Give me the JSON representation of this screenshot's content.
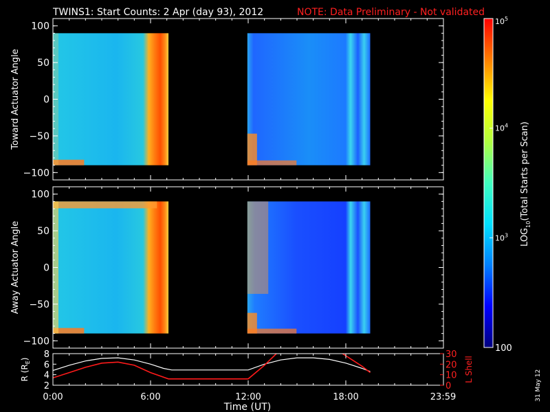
{
  "title": {
    "main": "TWINS1: Start Counts:  2 Apr (day  93), 2012",
    "note": "NOTE: Data Preliminary - Not validated"
  },
  "colorbar": {
    "label_prefix": "LOG",
    "label_sub": "10",
    "label_suffix": "(Total Starts per Scan)",
    "ticks": [
      {
        "value": 100,
        "text": "100"
      },
      {
        "value": 1000,
        "text": "10",
        "sup": "3"
      },
      {
        "value": 10000,
        "text": "10",
        "sup": "4"
      },
      {
        "value": 100000,
        "text": "10",
        "sup": "5"
      }
    ],
    "range": [
      100,
      100000
    ],
    "scale": "log",
    "colormap": [
      "#00007f",
      "#0000ff",
      "#0080ff",
      "#00e0ff",
      "#40ffc0",
      "#b0ff40",
      "#ffff00",
      "#ff8000",
      "#ff0000"
    ]
  },
  "date_stamp": "31 May 12",
  "x_axis": {
    "label": "Time (UT)",
    "range_hours": [
      0,
      24
    ],
    "ticks": [
      {
        "hour": 0,
        "text": "0:00"
      },
      {
        "hour": 6,
        "text": "6:00"
      },
      {
        "hour": 12,
        "text": "12:00"
      },
      {
        "hour": 18,
        "text": "18:00"
      },
      {
        "hour": 23.98,
        "text": "23:59"
      }
    ]
  },
  "chart_data": [
    {
      "type": "heatmap",
      "ylabel": "Toward Actuator Angle",
      "ylim": [
        -110,
        110
      ],
      "yticks": [
        -100,
        -50,
        0,
        50,
        100
      ],
      "data_y_range": [
        -90,
        90
      ],
      "intervals_hours": [
        [
          0,
          7.1
        ],
        [
          11.95,
          19.5
        ]
      ],
      "features": {
        "orange_band_hours": [
          6.0,
          6.9
        ],
        "background_level": 900
      }
    },
    {
      "type": "heatmap",
      "ylabel": "Away Actuator Angle",
      "ylim": [
        -110,
        110
      ],
      "yticks": [
        -100,
        -50,
        0,
        50,
        100
      ],
      "data_y_range": [
        -90,
        90
      ],
      "intervals_hours": [
        [
          0,
          7.1
        ],
        [
          11.95,
          19.5
        ]
      ],
      "features": {
        "orange_band_hours": [
          5.9,
          6.9
        ],
        "background_level": 900
      }
    },
    {
      "type": "line",
      "ylabel_left": "R (R",
      "ylabel_left_sub": "E",
      "ylabel_left_suffix": ")",
      "ylabel_right": "L Shell",
      "ylim_left": [
        2,
        8
      ],
      "yticks_left": [
        2,
        4,
        6,
        8
      ],
      "ylim_right": [
        0,
        30
      ],
      "yticks_right": [
        0,
        10,
        20,
        30
      ],
      "series": [
        {
          "axis": "left",
          "color": "#ffffff",
          "x": [
            0,
            1,
            2,
            3,
            4,
            5,
            6,
            6.8,
            7.3,
            8,
            10,
            12,
            13,
            14,
            15,
            16,
            17,
            18,
            19,
            19.5
          ],
          "y": [
            4.8,
            5.8,
            6.6,
            7.1,
            7.2,
            6.8,
            6.0,
            5.2,
            4.9,
            4.9,
            4.9,
            4.9,
            6.0,
            6.8,
            7.2,
            7.2,
            6.9,
            6.2,
            5.2,
            4.6
          ]
        },
        {
          "axis": "right",
          "color": "#ff1a1a",
          "x": [
            0,
            1,
            2,
            3,
            4,
            5,
            6,
            7.1,
            12,
            13,
            13.8,
            17.7,
            19,
            19.5
          ],
          "y": [
            7,
            12,
            17,
            21,
            22,
            19,
            12,
            6,
            6,
            19,
            31,
            31,
            18,
            12
          ]
        }
      ]
    }
  ]
}
